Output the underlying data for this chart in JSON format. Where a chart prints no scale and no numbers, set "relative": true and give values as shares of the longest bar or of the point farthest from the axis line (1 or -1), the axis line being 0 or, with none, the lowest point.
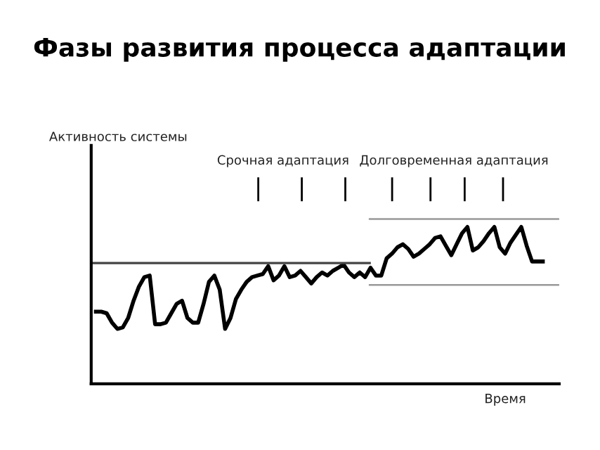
{
  "chart_data": {
    "type": "line",
    "relative": true,
    "title": "Фазы развития процесса адаптации",
    "xlabel": "Время",
    "annotations": [
      "Срочная адаптация",
      "Долговременная адаптация",
      "Активность системы"
    ],
    "categories": [
      null,
      null,
      null,
      null,
      null,
      null,
      null,
      null,
      null,
      null,
      null,
      null,
      null,
      null,
      null,
      null,
      null,
      null,
      null,
      null,
      null,
      null,
      null,
      null,
      null,
      null,
      null,
      null,
      null,
      null,
      null,
      null,
      null,
      null,
      null,
      null,
      null,
      null,
      null,
      null,
      null,
      null,
      null,
      null,
      null,
      null,
      null,
      null,
      null,
      null,
      null,
      null,
      null,
      null,
      null,
      null,
      null,
      null,
      null,
      null,
      null,
      null,
      null,
      null,
      null,
      null,
      null,
      null,
      null,
      null,
      null,
      null,
      null,
      null,
      null,
      null,
      null,
      null,
      null,
      null,
      null,
      null,
      null,
      null
    ],
    "series": [
      {
        "color": "#000000",
        "values": [
          0.46,
          0.46,
          0.45,
          0.39,
          0.35,
          0.36,
          0.42,
          0.53,
          0.62,
          0.68,
          0.69,
          0.38,
          0.38,
          0.39,
          0.45,
          0.51,
          0.53,
          0.42,
          0.39,
          0.39,
          0.51,
          0.65,
          0.69,
          0.6,
          0.35,
          0.42,
          0.54,
          0.6,
          0.65,
          0.68,
          0.69,
          0.7,
          0.75,
          0.66,
          0.69,
          0.75,
          0.68,
          0.69,
          0.72,
          0.68,
          0.64,
          0.68,
          0.71,
          0.69,
          0.72,
          0.74,
          0.76,
          0.71,
          0.68,
          0.71,
          0.68,
          0.74,
          0.69,
          0.69,
          0.8,
          0.83,
          0.87,
          0.89,
          0.86,
          0.81,
          0.83,
          0.86,
          0.89,
          0.93,
          0.94,
          0.88,
          0.82,
          0.89,
          0.96,
          1.0,
          0.85,
          0.87,
          0.91,
          0.96,
          1.0,
          0.87,
          0.83,
          0.9,
          0.95,
          1.0,
          0.88,
          0.78,
          0.78,
          0.78
        ]
      }
    ],
    "ref_lines": [
      {
        "axis": "y",
        "value": 0.77,
        "color": "#444444"
      },
      {
        "axis": "y",
        "value": 1.05,
        "color": "#999999"
      },
      {
        "axis": "y",
        "value": 0.63,
        "color": "#999999"
      }
    ],
    "legend": false,
    "marker": "none",
    "line_style": "solid"
  }
}
